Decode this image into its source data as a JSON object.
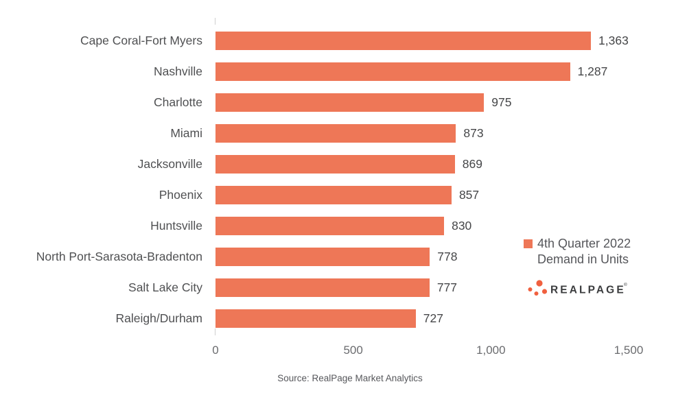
{
  "chart_data": {
    "type": "bar",
    "orientation": "horizontal",
    "title": "",
    "categories": [
      "Cape Coral-Fort Myers",
      "Nashville",
      "Charlotte",
      "Miami",
      "Jacksonville",
      "Phoenix",
      "Huntsville",
      "North Port-Sarasota-Bradenton",
      "Salt Lake City",
      "Raleigh/Durham"
    ],
    "values": [
      1363,
      1287,
      975,
      873,
      869,
      857,
      830,
      778,
      777,
      727
    ],
    "value_labels": [
      "1,363",
      "1,287",
      "975",
      "873",
      "869",
      "857",
      "830",
      "778",
      "777",
      "727"
    ],
    "xlabel": "",
    "ylabel": "",
    "xlim": [
      0,
      1500
    ],
    "x_ticks": [
      {
        "value": 0,
        "label": "0"
      },
      {
        "value": 500,
        "label": "500"
      },
      {
        "value": 1000,
        "label": "1,000"
      },
      {
        "value": 1500,
        "label": "1,500"
      }
    ],
    "grid": false,
    "bar_color": "#EE7757",
    "legend": {
      "position": "right",
      "swatch_color": "#EE7757",
      "lines": [
        "4th Quarter 2022",
        "Demand in Units"
      ]
    }
  },
  "branding": {
    "logo_text": "REALPAGE",
    "logo_trademark": "®",
    "logo_dot_color": "#F0603F",
    "logo_text_color": "#3B3C3E"
  },
  "footer": {
    "source_note": "Source: RealPage Market Analytics"
  }
}
